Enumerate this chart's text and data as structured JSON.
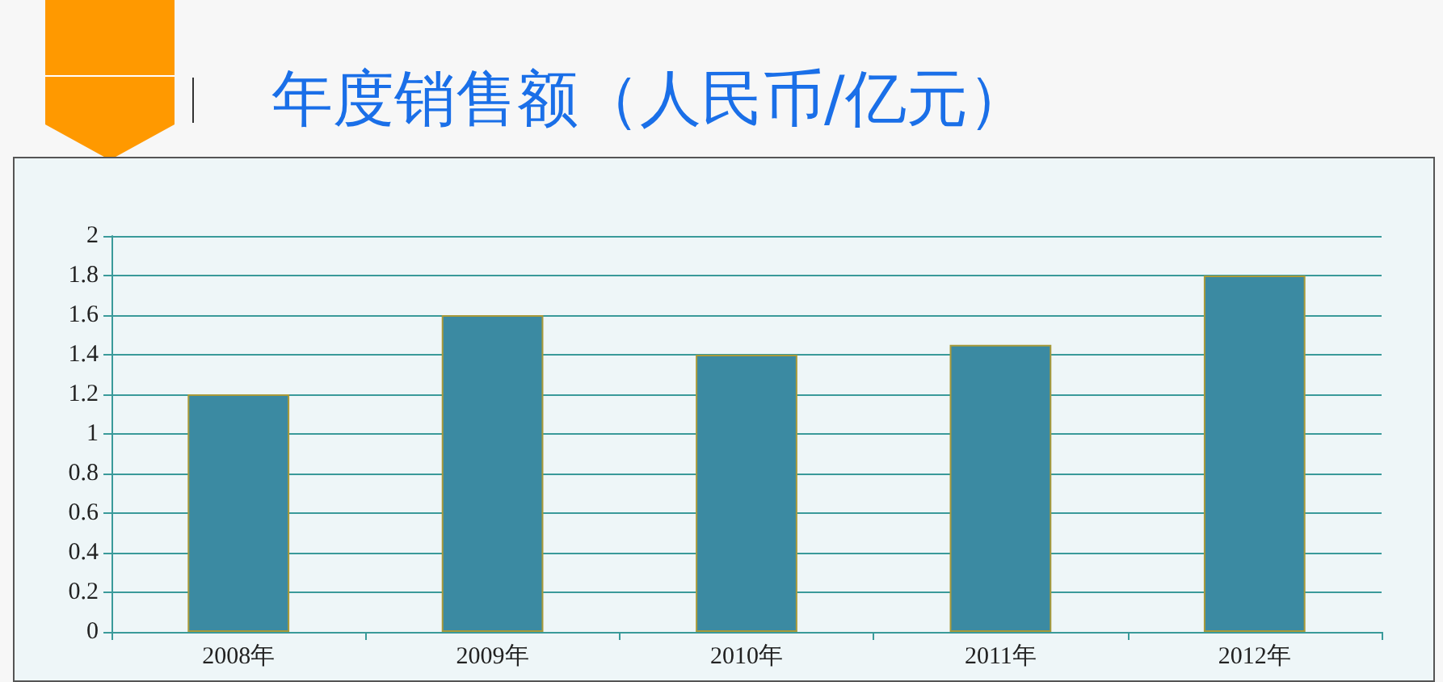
{
  "chart_data": {
    "type": "bar",
    "title": "年度销售额（人民币/亿元）",
    "categories": [
      "2008年",
      "2009年",
      "2010年",
      "2011年",
      "2012年"
    ],
    "values": [
      1.2,
      1.6,
      1.4,
      1.45,
      1.8
    ],
    "color": "#3b8aa2",
    "ylim": [
      0,
      2
    ],
    "yticks": [
      0,
      0.2,
      0.4,
      0.6,
      0.8,
      1,
      1.2,
      1.4,
      1.6,
      1.8,
      2
    ],
    "grid": "y"
  }
}
